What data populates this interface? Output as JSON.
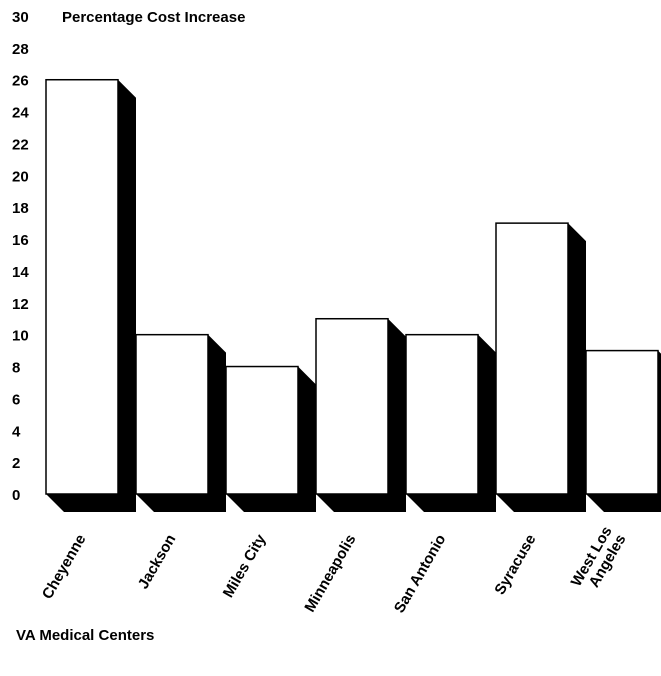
{
  "chart_data": {
    "type": "bar",
    "ylabel": "Percentage Cost Increase",
    "xlabel": "VA Medical Centers",
    "categories": [
      "Cheyenne",
      "Jackson",
      "Miles City",
      "Minneapolis",
      "San Antonio",
      "Syracuse",
      "West Los Angeles"
    ],
    "category_label_lines": [
      [
        "Cheyenne"
      ],
      [
        "Jackson"
      ],
      [
        "Miles City"
      ],
      [
        "Minneapolis"
      ],
      [
        "San Antonio"
      ],
      [
        "Syracuse"
      ],
      [
        "West Los",
        "Angeles"
      ]
    ],
    "values": [
      26,
      10,
      8,
      11,
      10,
      17,
      9
    ],
    "ylim": [
      0,
      30
    ],
    "yticks": [
      "0",
      "2",
      "4",
      "6",
      "8",
      "10",
      "12",
      "14",
      "16",
      "18",
      "20",
      "22",
      "24",
      "26",
      "28",
      "30"
    ],
    "grid": false,
    "style": "3d-shadow",
    "colors": {
      "bar_face": "#ffffff",
      "bar_outline": "#000000",
      "shadow": "#000000"
    }
  }
}
